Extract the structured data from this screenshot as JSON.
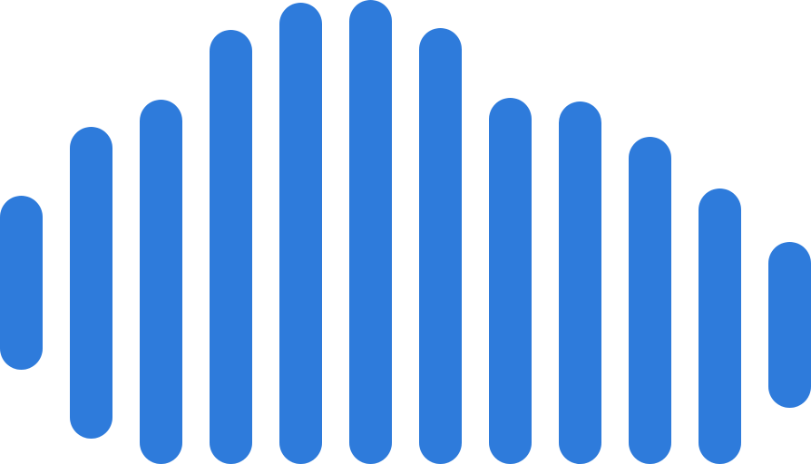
{
  "logo": {
    "icon": "sound-wave-icon",
    "color": "#2E7BDB"
  }
}
